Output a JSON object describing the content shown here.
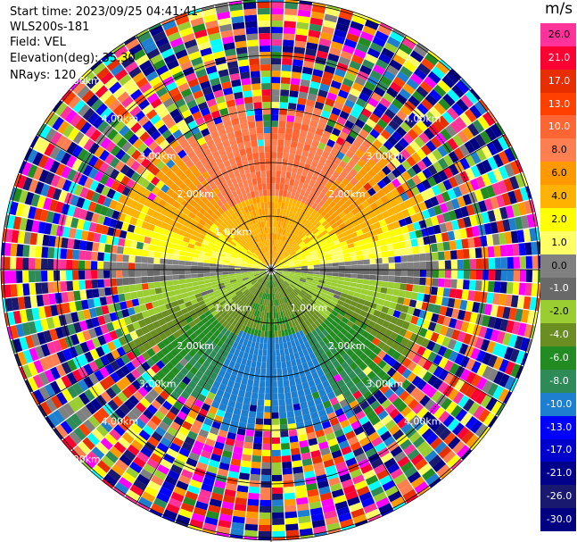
{
  "header": {
    "start_time": "Start time: 2023/09/25 04:41:41",
    "instrument": "WLS200s-181",
    "field": "Field: VEL",
    "elevation": "Elevation(deg): 35.30",
    "nrays": "NRays: 120"
  },
  "colorbar": {
    "unit": "m/s",
    "ticks": [
      "26.0",
      "21.0",
      "17.0",
      "13.0",
      "10.0",
      "8.0",
      "6.0",
      "4.0",
      "2.0",
      "1.0",
      "0.0",
      "-1.0",
      "-2.0",
      "-4.0",
      "-6.0",
      "-8.0",
      "-10.0",
      "-13.0",
      "-17.0",
      "-21.0",
      "-26.0",
      "-30.0"
    ],
    "colors": [
      "#ff3399",
      "#ff0033",
      "#e62e00",
      "#ff4000",
      "#ff6633",
      "#ff7f50",
      "#ff9900",
      "#ffb300",
      "#ffff00",
      "#ffff66",
      "#808080",
      "#696969",
      "#9acd32",
      "#6b8e23",
      "#228b22",
      "#2e8b57",
      "#1e7fd1",
      "#0000ff",
      "#0000cd",
      "#00008b",
      "#191970",
      "#000080"
    ],
    "label_colors": [
      "#000000",
      "#ffffff",
      "#ffffff",
      "#ffffff",
      "#ffffff",
      "#000000",
      "#000000",
      "#000000",
      "#000000",
      "#000000",
      "#000000",
      "#ffffff",
      "#000000",
      "#ffffff",
      "#ffffff",
      "#ffffff",
      "#ffffff",
      "#ffffff",
      "#ffffff",
      "#ffffff",
      "#ffffff",
      "#ffffff"
    ]
  },
  "chart_data": {
    "type": "heatmap",
    "projection": "polar PPI",
    "nrays": 120,
    "range_rings": [
      "1.00km",
      "2.00km",
      "3.00km",
      "4.00km",
      "5.00km"
    ],
    "ring_label_text": [
      "1.00km",
      "1.00km",
      "1.00km",
      "2.00km",
      "2.00km",
      "2.00km",
      "2.00km",
      "3.00km",
      "3.00km",
      "3.00km",
      "3.00km",
      "4.00km",
      "4.00km",
      "4.00km",
      "4.00km",
      "5.00km",
      "5.00km"
    ],
    "velocity_structure": [
      {
        "region": "north (0-1.5 km)",
        "value_ms": 4.0
      },
      {
        "region": "north (1.5-2.6 km)",
        "value_ms": 8.0
      },
      {
        "region": "east-west near 0 deg",
        "value_ms": 0.0
      },
      {
        "region": "south (0-1.5 km)",
        "value_ms": -4.0
      },
      {
        "region": "south (1.5-2.6 km)",
        "value_ms": -10.0
      }
    ],
    "valid_range_km": 2.7,
    "max_range_km": 5.5,
    "value_range_ms": [
      -30.0,
      26.0
    ]
  }
}
